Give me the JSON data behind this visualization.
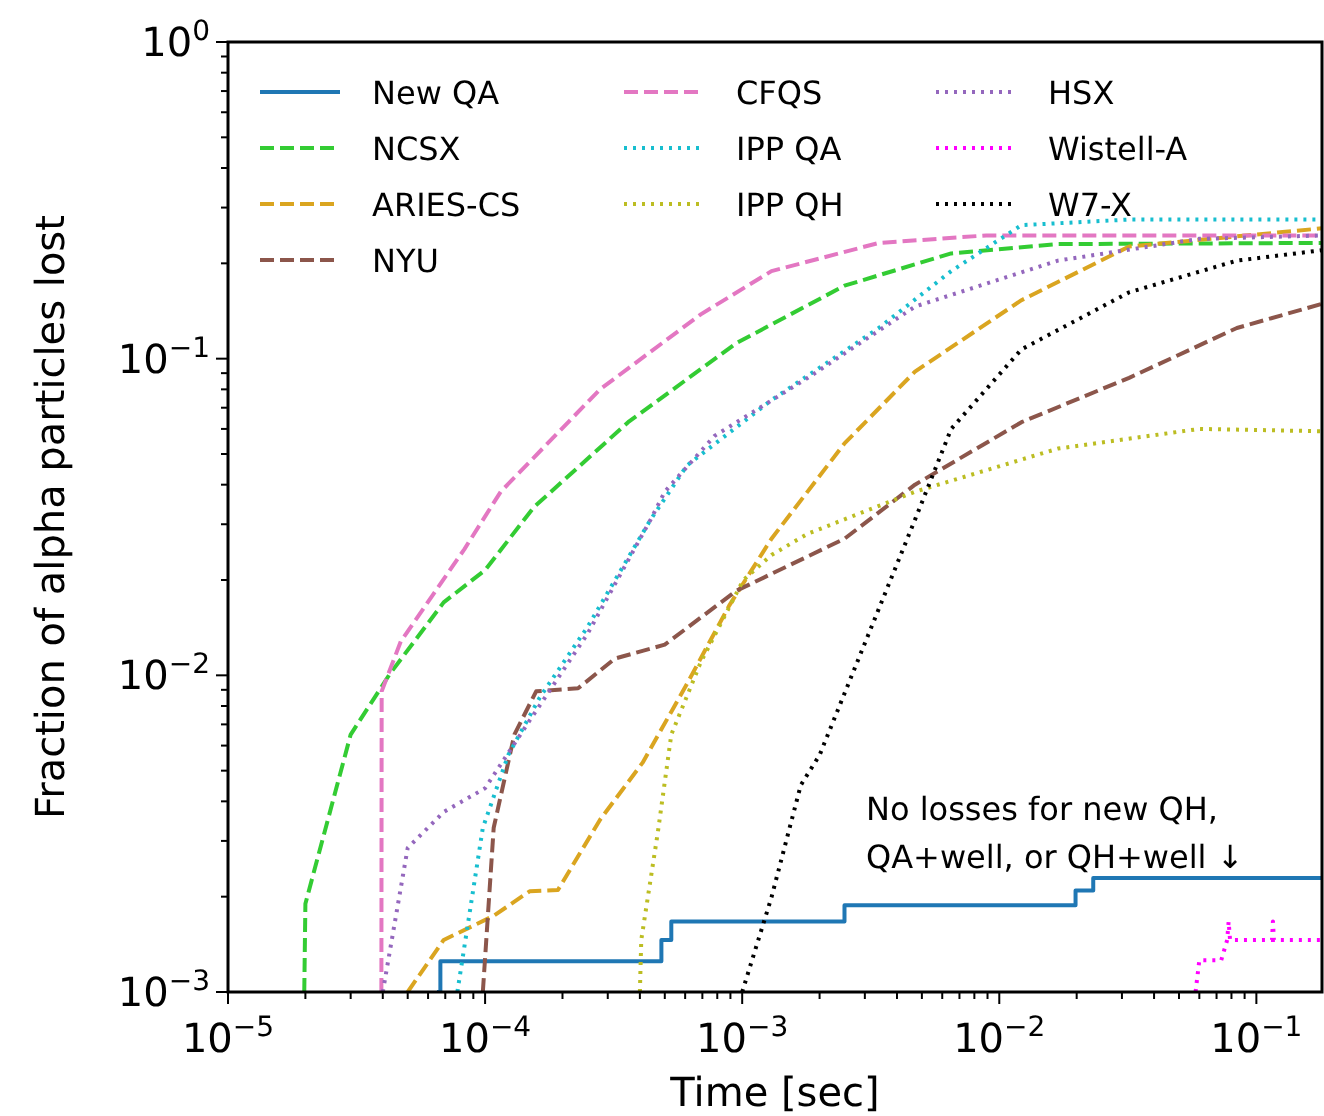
{
  "chart_data": {
    "type": "line",
    "xlabel": "Time [sec]",
    "ylabel": "Fraction of alpha particles lost",
    "log": "xy",
    "grid": false,
    "legend": "top left",
    "xlim": [
      1e-05,
      0.18
    ],
    "ylim": [
      0.001,
      1
    ],
    "xticks": [
      {
        "value": 1e-05,
        "label": "10$^{−5}$"
      },
      {
        "value": 2e-05,
        "label": null
      },
      {
        "value": 3e-05,
        "label": null
      },
      {
        "value": 4e-05,
        "label": null
      },
      {
        "value": 5e-05,
        "label": null
      },
      {
        "value": 6e-05,
        "label": null
      },
      {
        "value": 7e-05,
        "label": null
      },
      {
        "value": 8e-05,
        "label": null
      },
      {
        "value": 9e-05,
        "label": null
      },
      {
        "value": 0.0001,
        "label": "10$^{−4}$"
      },
      {
        "value": 0.0002,
        "label": null
      },
      {
        "value": 0.0003,
        "label": null
      },
      {
        "value": 0.0004,
        "label": null
      },
      {
        "value": 0.0005,
        "label": null
      },
      {
        "value": 0.0006,
        "label": null
      },
      {
        "value": 0.0007,
        "label": null
      },
      {
        "value": 0.0008,
        "label": null
      },
      {
        "value": 0.0009,
        "label": null
      },
      {
        "value": 0.001,
        "label": "10$^{−3}$"
      },
      {
        "value": 0.002,
        "label": null
      },
      {
        "value": 0.003,
        "label": null
      },
      {
        "value": 0.004,
        "label": null
      },
      {
        "value": 0.005,
        "label": null
      },
      {
        "value": 0.006,
        "label": null
      },
      {
        "value": 0.007,
        "label": null
      },
      {
        "value": 0.008,
        "label": null
      },
      {
        "value": 0.009,
        "label": null
      },
      {
        "value": 0.01,
        "label": "10$^{−2}$"
      },
      {
        "value": 0.02,
        "label": null
      },
      {
        "value": 0.03,
        "label": null
      },
      {
        "value": 0.04,
        "label": null
      },
      {
        "value": 0.05,
        "label": null
      },
      {
        "value": 0.06,
        "label": null
      },
      {
        "value": 0.07,
        "label": null
      },
      {
        "value": 0.08,
        "label": null
      },
      {
        "value": 0.09,
        "label": null
      },
      {
        "value": 0.1,
        "label": "10$^{−1}$"
      }
    ],
    "yticks": [
      {
        "value": 0.001,
        "label": "10$^{−3}$"
      },
      {
        "value": 0.002,
        "label": null
      },
      {
        "value": 0.003,
        "label": null
      },
      {
        "value": 0.004,
        "label": null
      },
      {
        "value": 0.005,
        "label": null
      },
      {
        "value": 0.006,
        "label": null
      },
      {
        "value": 0.007,
        "label": null
      },
      {
        "value": 0.008,
        "label": null
      },
      {
        "value": 0.009,
        "label": null
      },
      {
        "value": 0.01,
        "label": "10$^{−2}$"
      },
      {
        "value": 0.02,
        "label": null
      },
      {
        "value": 0.03,
        "label": null
      },
      {
        "value": 0.04,
        "label": null
      },
      {
        "value": 0.05,
        "label": null
      },
      {
        "value": 0.06,
        "label": null
      },
      {
        "value": 0.07,
        "label": null
      },
      {
        "value": 0.08,
        "label": null
      },
      {
        "value": 0.09,
        "label": null
      },
      {
        "value": 0.1,
        "label": "10$^{−1}$"
      },
      {
        "value": 0.2,
        "label": null
      },
      {
        "value": 0.3,
        "label": null
      },
      {
        "value": 0.4,
        "label": null
      },
      {
        "value": 0.5,
        "label": null
      },
      {
        "value": 0.6,
        "label": null
      },
      {
        "value": 0.7,
        "label": null
      },
      {
        "value": 0.8,
        "label": null
      },
      {
        "value": 0.9,
        "label": null
      },
      {
        "value": 1,
        "label": "10$^{0}$"
      }
    ],
    "annotations": [
      "No losses for new QH,\nQA+well, or QH+well ↓"
    ],
    "series": [
      {
        "name": "New QA",
        "type": "step",
        "color": "#1f77b4",
        "line_style": "solid",
        "x": [
          6.5e-05,
          6.7e-05,
          0.000485,
          0.00053,
          0.0025,
          0.0198,
          0.0232,
          0.18
        ],
        "values": [
          0.001,
          0.00125,
          0.00146,
          0.00167,
          0.00188,
          0.00209,
          0.00229,
          0.00229
        ]
      },
      {
        "name": "NCSX",
        "color": "#33cc33",
        "line_style": "dashed",
        "x": [
          1.98e-05,
          2e-05,
          3e-05,
          4.26e-05,
          6.9e-05,
          0.0001,
          0.000155,
          0.00036,
          0.00095,
          0.0025,
          0.0065,
          0.0169,
          0.18
        ],
        "values": [
          0.001,
          0.0019,
          0.0065,
          0.0101,
          0.017,
          0.0215,
          0.034,
          0.063,
          0.112,
          0.17,
          0.215,
          0.23,
          0.232
        ]
      },
      {
        "name": "ARIES-CS",
        "color": "#daa520",
        "line_style": "dashed",
        "x": [
          5e-05,
          6.9e-05,
          0.000108,
          0.000149,
          0.000192,
          0.00028,
          0.00041,
          0.00061,
          0.00089,
          0.0013,
          0.0025,
          0.0047,
          0.0122,
          0.032,
          0.18
        ],
        "values": [
          0.001,
          0.00146,
          0.00174,
          0.00208,
          0.0021,
          0.0035,
          0.0053,
          0.0094,
          0.0166,
          0.027,
          0.054,
          0.091,
          0.153,
          0.226,
          0.258
        ]
      },
      {
        "name": "NYU",
        "color": "#8c564b",
        "line_style": "dashed",
        "x": [
          9.8e-05,
          0.000108,
          0.00013,
          0.000158,
          0.00023,
          0.00032,
          0.0005,
          0.00095,
          0.0025,
          0.0047,
          0.0122,
          0.032,
          0.084,
          0.18
        ],
        "values": [
          0.001,
          0.0033,
          0.0065,
          0.0089,
          0.0091,
          0.0113,
          0.0125,
          0.0185,
          0.027,
          0.04,
          0.063,
          0.087,
          0.125,
          0.149
        ]
      },
      {
        "name": "CFQS",
        "color": "#e377c2",
        "line_style": "dashed",
        "x": [
          3.95e-05,
          3.96e-05,
          4.7e-05,
          8.3e-05,
          0.000115,
          0.00028,
          0.00069,
          0.0013,
          0.0034,
          0.0089,
          0.18
        ],
        "values": [
          0.001,
          0.0089,
          0.0128,
          0.025,
          0.038,
          0.08,
          0.138,
          0.189,
          0.232,
          0.245,
          0.245
        ]
      },
      {
        "name": "IPP QA",
        "color": "#17becf",
        "line_style": "dotted",
        "x": [
          7.8e-05,
          9.8e-05,
          0.000123,
          0.000163,
          0.00025,
          0.00044,
          0.00061,
          0.0013,
          0.0034,
          0.0065,
          0.0122,
          0.032,
          0.18
        ],
        "values": [
          0.001,
          0.0033,
          0.0056,
          0.0085,
          0.0142,
          0.031,
          0.046,
          0.074,
          0.125,
          0.189,
          0.264,
          0.275,
          0.275
        ]
      },
      {
        "name": "IPP QH",
        "color": "#bcbd22",
        "line_style": "dotted",
        "x": [
          0.0004,
          0.000405,
          0.00047,
          0.00053,
          0.00069,
          0.00101,
          0.0013,
          0.0018,
          0.0047,
          0.0169,
          0.06,
          0.18
        ],
        "values": [
          0.001,
          0.00146,
          0.0032,
          0.0065,
          0.011,
          0.02,
          0.024,
          0.028,
          0.038,
          0.052,
          0.06,
          0.059
        ]
      },
      {
        "name": "HSX",
        "color": "#9467bd",
        "line_style": "dotted",
        "x": [
          4e-05,
          5e-05,
          6.9e-05,
          0.0001,
          0.000149,
          0.00025,
          0.00044,
          0.0005,
          0.00078,
          0.0018,
          0.0047,
          0.0169,
          0.06,
          0.18
        ],
        "values": [
          0.001,
          0.00285,
          0.0037,
          0.0044,
          0.0072,
          0.0135,
          0.031,
          0.038,
          0.057,
          0.087,
          0.146,
          0.204,
          0.239,
          0.245
        ]
      },
      {
        "name": "Wistell-A",
        "color": "#ff00ff",
        "line_style": "dotted",
        "x": [
          0.058,
          0.06,
          0.073,
          0.077,
          0.078,
          0.079,
          0.115,
          0.116,
          0.117,
          0.18
        ],
        "values": [
          0.001,
          0.00126,
          0.00126,
          0.00146,
          0.00167,
          0.00146,
          0.00146,
          0.00167,
          0.00146,
          0.00146
        ]
      },
      {
        "name": "W7-X",
        "color": "#000000",
        "line_style": "dotted",
        "x": [
          0.001,
          0.0013,
          0.00169,
          0.002,
          0.0028,
          0.0047,
          0.0065,
          0.0122,
          0.032,
          0.084,
          0.18
        ],
        "values": [
          0.001,
          0.00199,
          0.0045,
          0.0056,
          0.011,
          0.031,
          0.06,
          0.107,
          0.162,
          0.204,
          0.22
        ]
      }
    ]
  }
}
